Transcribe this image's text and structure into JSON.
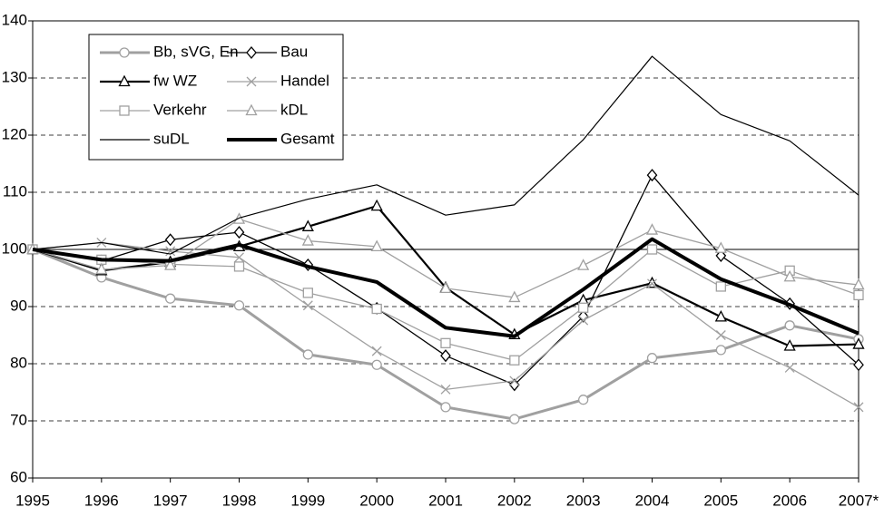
{
  "chart_data": {
    "type": "line",
    "categories": [
      "1995",
      "1996",
      "1997",
      "1998",
      "1999",
      "2000",
      "2001",
      "2002",
      "2003",
      "2004",
      "2005",
      "2006",
      "2007*"
    ],
    "ylim": [
      60,
      140
    ],
    "yticks": [
      60,
      70,
      80,
      90,
      100,
      110,
      120,
      130,
      140
    ],
    "grid": true,
    "reference_line": 100,
    "legend": "top-left",
    "series": [
      {
        "name": "Bb, sVG, En",
        "color": "#a0a0a0",
        "width": 3,
        "marker": "circle",
        "values": [
          100,
          95.1,
          91.4,
          90.2,
          81.6,
          79.8,
          72.4,
          70.3,
          73.7,
          81.0,
          82.4,
          86.7,
          84.3
        ]
      },
      {
        "name": "Bau",
        "color": "#000000",
        "width": 1.3,
        "marker": "diamond",
        "values": [
          100,
          98,
          101.7,
          103.0,
          97.3,
          89.7,
          81.4,
          76.3,
          88.3,
          113.0,
          98.9,
          90.5,
          79.8
        ]
      },
      {
        "name": "fw WZ",
        "color": "#000000",
        "width": 2.2,
        "marker": "triangle",
        "values": [
          100,
          96.3,
          97.8,
          100.5,
          104.0,
          107.6,
          93.3,
          85.1,
          91.1,
          94.1,
          88.2,
          83.1,
          83.4
        ]
      },
      {
        "name": "Handel",
        "color": "#a0a0a0",
        "width": 1.3,
        "marker": "x",
        "values": [
          100,
          101.2,
          99.7,
          98.6,
          90.2,
          82.2,
          75.5,
          77.0,
          87.6,
          94.0,
          85.0,
          79.3,
          72.4
        ]
      },
      {
        "name": "Verkehr",
        "color": "#a0a0a0",
        "width": 1.3,
        "marker": "square",
        "values": [
          100,
          98.2,
          97.4,
          97.0,
          92.4,
          89.6,
          83.6,
          80.6,
          89.8,
          100.0,
          93.5,
          96.3,
          92.0
        ]
      },
      {
        "name": "kDL",
        "color": "#a0a0a0",
        "width": 1.3,
        "marker": "triangle",
        "values": [
          100,
          96.5,
          97.2,
          105.3,
          101.5,
          100.5,
          93.2,
          91.6,
          97.2,
          103.4,
          100.2,
          95.2,
          93.8
        ]
      },
      {
        "name": "suDL",
        "color": "#000000",
        "width": 1.2,
        "marker": "none",
        "values": [
          100,
          101.2,
          99.2,
          105.5,
          108.8,
          111.3,
          106.0,
          107.8,
          119.2,
          133.8,
          123.6,
          119.0,
          109.5
        ]
      },
      {
        "name": "Gesamt",
        "color": "#000000",
        "width": 4,
        "marker": "none",
        "values": [
          100,
          98.2,
          98.0,
          100.8,
          97.0,
          94.3,
          86.3,
          84.8,
          93.0,
          101.8,
          94.8,
          90.3,
          85.3
        ]
      }
    ]
  }
}
